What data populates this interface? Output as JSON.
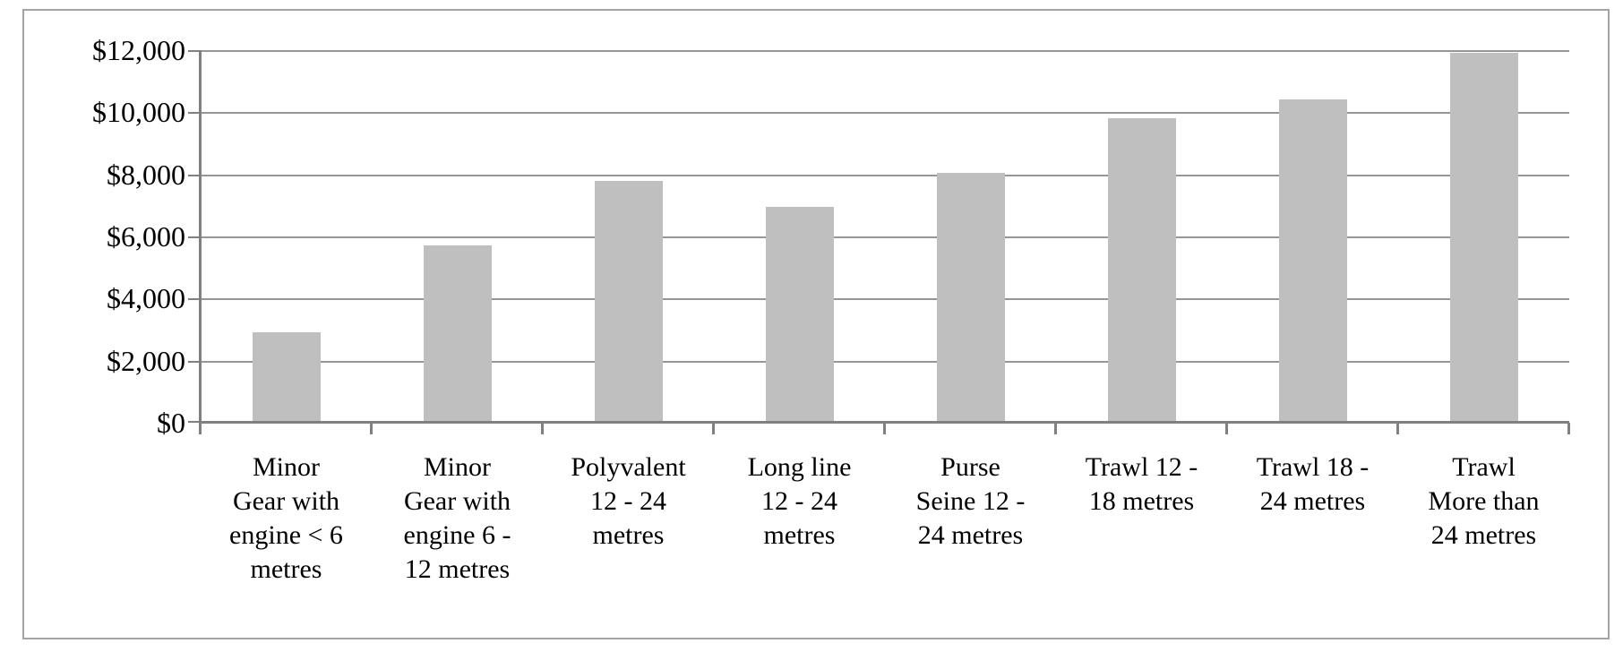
{
  "chart_data": {
    "type": "bar",
    "title": "",
    "xlabel": "",
    "ylabel": "",
    "legend": "none",
    "grid": "horizontal",
    "categories": [
      "Minor Gear with engine < 6 metres",
      "Minor Gear with engine 6 - 12 metres",
      "Polyvalent 12 - 24 metres",
      "Long line 12 - 24 metres",
      "Purse Seine 12 - 24 metres",
      "Trawl 12 - 18 metres",
      "Trawl 18 - 24 metres",
      "Trawl More than 24 metres"
    ],
    "category_display_lines": [
      [
        "Minor",
        "Gear with",
        "engine < 6",
        "metres"
      ],
      [
        "Minor",
        "Gear with",
        "engine 6 -",
        "12 metres"
      ],
      [
        "Polyvalent",
        "12 - 24",
        "metres"
      ],
      [
        "Long line",
        "12 - 24",
        "metres"
      ],
      [
        "Purse",
        "Seine 12 -",
        "24 metres"
      ],
      [
        "Trawl 12 -",
        "18 metres"
      ],
      [
        "Trawl 18 -",
        "24 metres"
      ],
      [
        "Trawl",
        "More than",
        "24 metres"
      ]
    ],
    "values": [
      2900,
      5700,
      7800,
      6950,
      8050,
      9800,
      10400,
      11900
    ],
    "y_axis": {
      "min": 0,
      "max": 12000,
      "tick_step": 2000,
      "tick_labels": [
        "$0",
        "$2,000",
        "$4,000",
        "$6,000",
        "$8,000",
        "$10,000",
        "$12,000"
      ]
    },
    "colors": {
      "bar_fill": "#bfbfbf",
      "gridline": "#969696",
      "axis_line": "#808080",
      "frame_border": "#a3a3a3",
      "text": "#000000",
      "background": "#ffffff"
    }
  }
}
